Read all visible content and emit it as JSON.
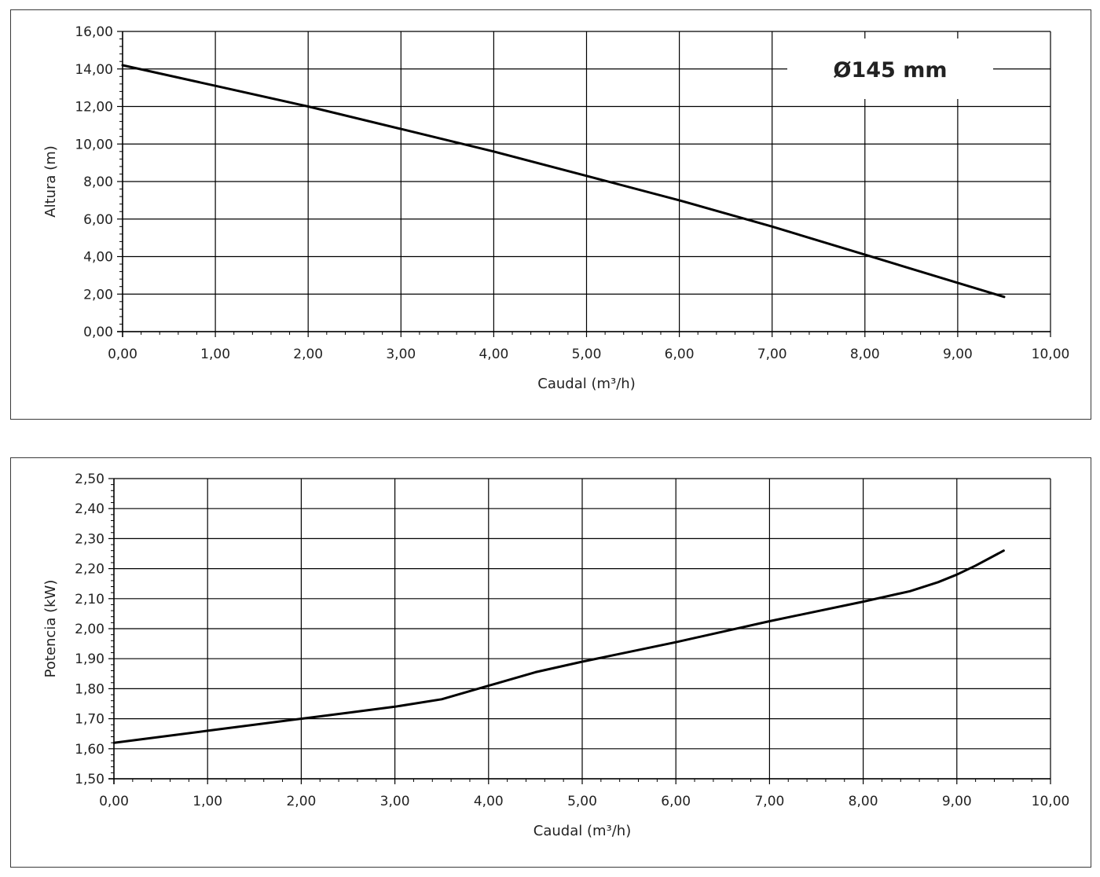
{
  "chart_data": [
    {
      "type": "line",
      "xlabel": "Caudal (m³/h)",
      "ylabel": "Altura (m)",
      "xlim": [
        0,
        10
      ],
      "ylim": [
        0,
        16
      ],
      "x_ticks": [
        "0,00",
        "1,00",
        "2,00",
        "3,00",
        "4,00",
        "5,00",
        "6,00",
        "7,00",
        "8,00",
        "9,00",
        "10,00"
      ],
      "y_ticks": [
        "0,00",
        "2,00",
        "4,00",
        "6,00",
        "8,00",
        "10,00",
        "12,00",
        "14,00",
        "16,00"
      ],
      "grid": true,
      "annotation": "Ø145 mm",
      "series": [
        {
          "x": [
            0,
            1,
            2,
            3,
            4,
            5,
            6,
            7,
            8,
            9,
            9.5
          ],
          "y": [
            14.2,
            13.1,
            12.0,
            10.8,
            9.6,
            8.3,
            7.0,
            5.6,
            4.1,
            2.6,
            1.85
          ]
        }
      ]
    },
    {
      "type": "line",
      "xlabel": "Caudal (m³/h)",
      "ylabel": "Potencia (kW)",
      "xlim": [
        0,
        10
      ],
      "ylim": [
        1.5,
        2.5
      ],
      "x_ticks": [
        "0,00",
        "1,00",
        "2,00",
        "3,00",
        "4,00",
        "5,00",
        "6,00",
        "7,00",
        "8,00",
        "9,00",
        "10,00"
      ],
      "y_ticks": [
        "1,50",
        "1,60",
        "1,70",
        "1,80",
        "1,90",
        "2,00",
        "2,10",
        "2,20",
        "2,30",
        "2,40",
        "2,50"
      ],
      "grid": true,
      "series": [
        {
          "x": [
            0,
            1,
            2,
            2.5,
            3,
            3.5,
            4,
            4.5,
            5,
            6,
            7,
            8,
            8.5,
            8.8,
            9,
            9.2,
            9.5
          ],
          "y": [
            1.62,
            1.66,
            1.7,
            1.72,
            1.74,
            1.765,
            1.81,
            1.855,
            1.89,
            1.955,
            2.025,
            2.09,
            2.125,
            2.155,
            2.18,
            2.21,
            2.26
          ]
        }
      ]
    }
  ]
}
